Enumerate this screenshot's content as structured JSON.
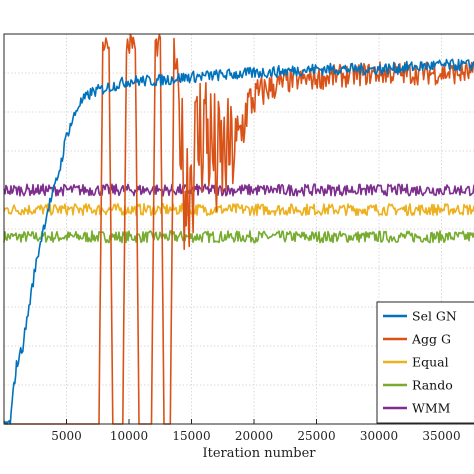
{
  "chart_data": {
    "type": "line",
    "title": "",
    "xlabel": "Iteration number",
    "ylabel": "",
    "xlim": [
      0,
      40000
    ],
    "ylim": [
      0,
      100
    ],
    "xticks": [
      5000,
      10000,
      15000,
      20000,
      25000,
      30000,
      35000
    ],
    "xtick_labels": [
      "5000",
      "10000",
      "15000",
      "20000",
      "25000",
      "30000",
      "35000"
    ],
    "grid": true,
    "legend_placement": "bottom-right",
    "series": [
      {
        "name": "Sel GN",
        "color": "#0072BD",
        "x": [
          0,
          500,
          800,
          1000,
          1500,
          2000,
          2500,
          3000,
          3500,
          4000,
          4500,
          5000,
          6000,
          7000,
          8000,
          10000,
          12000,
          15000,
          20000,
          25000,
          30000,
          35000,
          39500
        ],
        "y": [
          0,
          0,
          10,
          15,
          20,
          30,
          40,
          48,
          55,
          60,
          66,
          74,
          82,
          85,
          86,
          88,
          88,
          89,
          90,
          91,
          91,
          92,
          92
        ]
      },
      {
        "name": "Agg G",
        "color": "#D95319",
        "x": [
          0,
          7600,
          7900,
          8400,
          8700,
          9500,
          9800,
          10500,
          10800,
          11800,
          12100,
          12500,
          12800,
          13300,
          13600,
          14500,
          16000,
          17000,
          18000,
          18600,
          19500,
          21000,
          23000,
          26000,
          30000,
          35000,
          39500
        ],
        "y": [
          0,
          0,
          98,
          98,
          0,
          0,
          98,
          98,
          0,
          0,
          97,
          97,
          0,
          0,
          96,
          60,
          78,
          66,
          70,
          70,
          82,
          86,
          88,
          89,
          90,
          90,
          90
        ],
        "noise": [
          0,
          0,
          3,
          3,
          0,
          0,
          3,
          3,
          0,
          0,
          3,
          3,
          0,
          0,
          3,
          20,
          20,
          18,
          14,
          12,
          6,
          4,
          3,
          3,
          3,
          3,
          3
        ]
      },
      {
        "name": "Equal",
        "color": "#EDB120",
        "x": [
          0,
          40000
        ],
        "y": [
          55,
          55
        ]
      },
      {
        "name": "Rando",
        "color": "#77AC30",
        "x": [
          0,
          40000
        ],
        "y": [
          48,
          48
        ]
      },
      {
        "name": "WMM",
        "color": "#7E2F8E",
        "x": [
          0,
          40000
        ],
        "y": [
          60,
          60
        ]
      }
    ]
  }
}
